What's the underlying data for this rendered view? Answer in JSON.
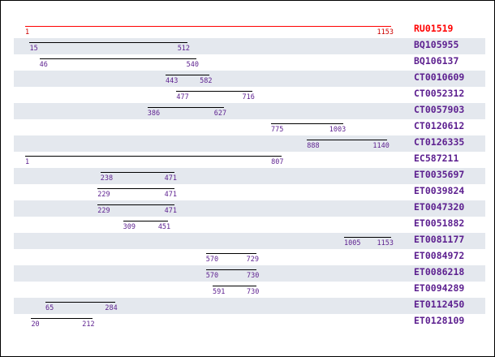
{
  "scale": {
    "min": 1,
    "max": 1153
  },
  "colors": {
    "reference": "#ff0000",
    "label": "#5c1f8f",
    "row_shade": "#e4e8ee",
    "bar": "#000000"
  },
  "reference": {
    "id": "RU01519",
    "start": "1",
    "end": "1153"
  },
  "alignments": [
    {
      "id": "BQ105955",
      "start": "15",
      "end": "512"
    },
    {
      "id": "BQ106137",
      "start": "46",
      "end": "540"
    },
    {
      "id": "CT0010609",
      "start": "443",
      "end": "582"
    },
    {
      "id": "CT0052312",
      "start": "477",
      "end": "716"
    },
    {
      "id": "CT0057903",
      "start": "386",
      "end": "627"
    },
    {
      "id": "CT0120612",
      "start": "775",
      "end": "1003"
    },
    {
      "id": "CT0126335",
      "start": "888",
      "end": "1140"
    },
    {
      "id": "EC587211",
      "start": "1",
      "end": "807"
    },
    {
      "id": "ET0035697",
      "start": "238",
      "end": "471"
    },
    {
      "id": "ET0039824",
      "start": "229",
      "end": "471"
    },
    {
      "id": "ET0047320",
      "start": "229",
      "end": "471"
    },
    {
      "id": "ET0051882",
      "start": "309",
      "end": "451"
    },
    {
      "id": "ET0081177",
      "start": "1005",
      "end": "1153"
    },
    {
      "id": "ET0084972",
      "start": "570",
      "end": "729"
    },
    {
      "id": "ET0086218",
      "start": "570",
      "end": "730"
    },
    {
      "id": "ET0094289",
      "start": "591",
      "end": "730"
    },
    {
      "id": "ET0112450",
      "start": "65",
      "end": "284"
    },
    {
      "id": "ET0128109",
      "start": "20",
      "end": "212"
    }
  ]
}
